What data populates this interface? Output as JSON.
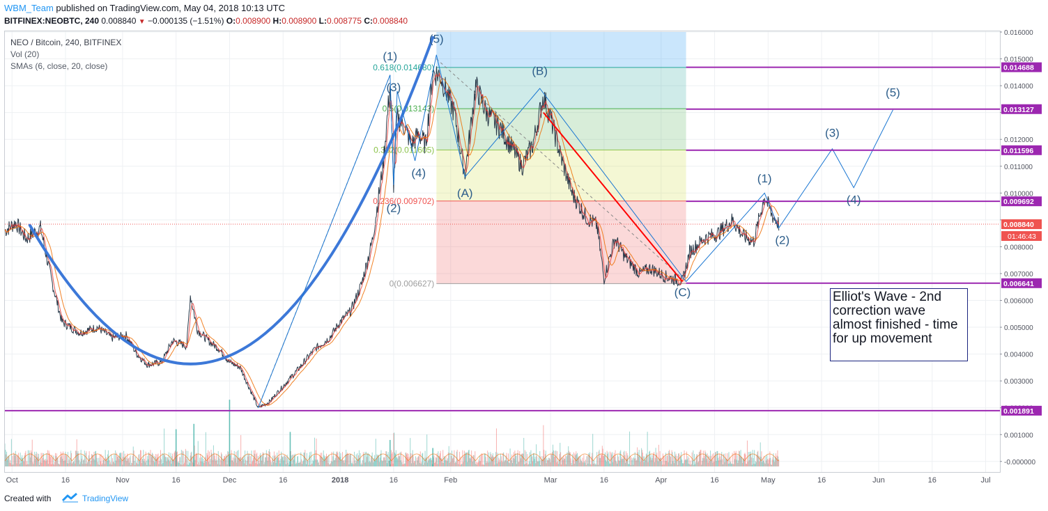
{
  "header": {
    "username": "WBM_Team",
    "published_text": "published on TradingView.com, May 04, 2018 10:13 UTC",
    "symbol_line": "BITFINEX:NEOBTC, 240",
    "last": "0.008840",
    "change": "−0.000135 (−1.51%)",
    "o_label": "O:",
    "o_value": "0.008900",
    "h_label": "H:",
    "h_value": "0.008900",
    "l_label": "L:",
    "l_value": "0.008775",
    "c_label": "C:",
    "c_value": "0.008840"
  },
  "legend": {
    "title": "NEO / Bitcoin, 240, BITFINEX",
    "volume": "Vol (20)",
    "smas": "SMAs (6, close, 20, close)"
  },
  "footer": {
    "created_with": "Created with",
    "brand": "TradingView"
  },
  "annotation": {
    "text": "Elliot's Wave - 2nd correction wave almost finished - time for up movement"
  },
  "colors": {
    "price_line": "#2a3a4a",
    "sma_fast": "#e53935",
    "sma_slow": "#ef6c00",
    "up": "#26a69a",
    "down": "#ef5350",
    "level": "#9c27b0",
    "wave": "#1976d2",
    "curve": "#3c78d8",
    "trend_red": "#ff0000",
    "badge_red": "#ef5350"
  },
  "chart_data": {
    "type": "line",
    "symbol": "NEO / Bitcoin",
    "y_axis": {
      "scale": "linear",
      "range": [
        -0.0005,
        0.016
      ],
      "ticks": [
        -0.0,
        0.001,
        0.002,
        0.003,
        0.004,
        0.005,
        0.006,
        0.007,
        0.008,
        0.009,
        0.01,
        0.011,
        0.012,
        0.013,
        0.014,
        0.015,
        0.016
      ],
      "tick_labels": [
        "-0.000000",
        "0.001000",
        "0.002000",
        "0.003000",
        "0.004000",
        "0.005000",
        "0.006000",
        "0.007000",
        "0.008000",
        "",
        "0.010000",
        "0.011000",
        "0.012000",
        "",
        "0.014000",
        "0.015000",
        "0.016000"
      ]
    },
    "x_axis": {
      "range": [
        "2017-09-29",
        "2018-07-05"
      ],
      "ticks": [
        {
          "date": "2017-10-01",
          "label": "Oct",
          "bold": false
        },
        {
          "date": "2017-10-16",
          "label": "16",
          "bold": false
        },
        {
          "date": "2017-11-01",
          "label": "Nov",
          "bold": false
        },
        {
          "date": "2017-11-16",
          "label": "16",
          "bold": false
        },
        {
          "date": "2017-12-01",
          "label": "Dec",
          "bold": false
        },
        {
          "date": "2017-12-16",
          "label": "16",
          "bold": false
        },
        {
          "date": "2018-01-01",
          "label": "2018",
          "bold": true
        },
        {
          "date": "2018-01-16",
          "label": "16",
          "bold": false
        },
        {
          "date": "2018-02-01",
          "label": "Feb",
          "bold": false
        },
        {
          "date": "2018-03-01",
          "label": "Mar",
          "bold": false
        },
        {
          "date": "2018-03-16",
          "label": "16",
          "bold": false
        },
        {
          "date": "2018-04-01",
          "label": "Apr",
          "bold": false
        },
        {
          "date": "2018-04-16",
          "label": "16",
          "bold": false
        },
        {
          "date": "2018-05-01",
          "label": "May",
          "bold": false
        },
        {
          "date": "2018-05-16",
          "label": "16",
          "bold": false
        },
        {
          "date": "2018-06-01",
          "label": "Jun",
          "bold": false
        },
        {
          "date": "2018-06-16",
          "label": "16",
          "bold": false
        },
        {
          "date": "2018-07-01",
          "label": "Jul",
          "bold": false
        }
      ]
    },
    "price_path": [
      [
        "2017-09-29",
        0.0086
      ],
      [
        "2017-10-02",
        0.0089
      ],
      [
        "2017-10-05",
        0.0083
      ],
      [
        "2017-10-09",
        0.0087
      ],
      [
        "2017-10-12",
        0.0068
      ],
      [
        "2017-10-15",
        0.0052
      ],
      [
        "2017-10-20",
        0.0048
      ],
      [
        "2017-10-25",
        0.005
      ],
      [
        "2017-10-29",
        0.0046
      ],
      [
        "2017-11-02",
        0.0047
      ],
      [
        "2017-11-05",
        0.004
      ],
      [
        "2017-11-08",
        0.0036
      ],
      [
        "2017-11-12",
        0.0037
      ],
      [
        "2017-11-15",
        0.0045
      ],
      [
        "2017-11-19",
        0.0043
      ],
      [
        "2017-11-20",
        0.0062
      ],
      [
        "2017-11-22",
        0.0049
      ],
      [
        "2017-11-25",
        0.0045
      ],
      [
        "2017-11-28",
        0.0042
      ],
      [
        "2017-12-01",
        0.0037
      ],
      [
        "2017-12-04",
        0.0035
      ],
      [
        "2017-12-07",
        0.0026
      ],
      [
        "2017-12-09",
        0.002
      ],
      [
        "2017-12-12",
        0.0022
      ],
      [
        "2017-12-16",
        0.0028
      ],
      [
        "2017-12-20",
        0.0034
      ],
      [
        "2017-12-25",
        0.0042
      ],
      [
        "2017-12-29",
        0.0046
      ],
      [
        "2018-01-01",
        0.0052
      ],
      [
        "2018-01-04",
        0.0056
      ],
      [
        "2018-01-07",
        0.0066
      ],
      [
        "2018-01-10",
        0.0082
      ],
      [
        "2018-01-13",
        0.011
      ],
      [
        "2018-01-15",
        0.014
      ],
      [
        "2018-01-16",
        0.0103
      ],
      [
        "2018-01-17",
        0.0128
      ],
      [
        "2018-01-19",
        0.0125
      ],
      [
        "2018-01-21",
        0.0118
      ],
      [
        "2018-01-23",
        0.0122
      ],
      [
        "2018-01-25",
        0.0118
      ],
      [
        "2018-01-27",
        0.0145
      ],
      [
        "2018-01-29",
        0.0144
      ],
      [
        "2018-02-02",
        0.013
      ],
      [
        "2018-02-05",
        0.0107
      ],
      [
        "2018-02-08",
        0.014
      ],
      [
        "2018-02-11",
        0.013
      ],
      [
        "2018-02-15",
        0.0124
      ],
      [
        "2018-02-19",
        0.0115
      ],
      [
        "2018-02-21",
        0.011
      ],
      [
        "2018-02-24",
        0.0118
      ],
      [
        "2018-02-27",
        0.0136
      ],
      [
        "2018-03-01",
        0.0128
      ],
      [
        "2018-03-04",
        0.0113
      ],
      [
        "2018-03-07",
        0.01
      ],
      [
        "2018-03-11",
        0.0091
      ],
      [
        "2018-03-14",
        0.0088
      ],
      [
        "2018-03-16",
        0.0068
      ],
      [
        "2018-03-19",
        0.0083
      ],
      [
        "2018-03-22",
        0.0076
      ],
      [
        "2018-03-26",
        0.007
      ],
      [
        "2018-03-29",
        0.0072
      ],
      [
        "2018-04-02",
        0.0069
      ],
      [
        "2018-04-07",
        0.0067
      ],
      [
        "2018-04-09",
        0.0078
      ],
      [
        "2018-04-13",
        0.0083
      ],
      [
        "2018-04-17",
        0.0085
      ],
      [
        "2018-04-21",
        0.009
      ],
      [
        "2018-04-24",
        0.0084
      ],
      [
        "2018-04-27",
        0.0082
      ],
      [
        "2018-04-30",
        0.0099
      ],
      [
        "2018-05-02",
        0.0092
      ],
      [
        "2018-05-04",
        0.00884
      ]
    ],
    "sma": [
      {
        "name": "SMA 6",
        "color": "#e53935"
      },
      {
        "name": "SMA 20",
        "color": "#ef6c00"
      }
    ],
    "fib_retracement": {
      "start": "2018-01-28",
      "end": "2018-04-08",
      "levels": [
        {
          "ratio_label": "0.618(0.014680)",
          "price": 0.01468,
          "color": "#26a69a"
        },
        {
          "ratio_label": "0.5(0.013143)",
          "price": 0.013143,
          "color": "#4caf50"
        },
        {
          "ratio_label": "0.382(0.011605)",
          "price": 0.011605,
          "color": "#8bc34a"
        },
        {
          "ratio_label": "0.236(0.009702)",
          "price": 0.009702,
          "color": "#ef5350"
        },
        {
          "ratio_label": "0(0.006627)",
          "price": 0.006627,
          "color": "#9e9e9e"
        }
      ]
    },
    "horizontal_levels": [
      {
        "price": 0.014688,
        "label": "0.014688",
        "from": "2018-04-08"
      },
      {
        "price": 0.013127,
        "label": "0.013127",
        "from": "2018-04-08"
      },
      {
        "price": 0.011596,
        "label": "0.011596",
        "from": "2018-04-08"
      },
      {
        "price": 0.009692,
        "label": "0.009692",
        "from": "2018-04-08"
      },
      {
        "price": 0.006641,
        "label": "0.006641",
        "from": "2018-04-08"
      },
      {
        "price": 0.001891,
        "label": "0.001891",
        "from": "2017-09-29"
      }
    ],
    "current_price": {
      "price": 0.00884,
      "label": "0.008840",
      "countdown": "01:46:43"
    },
    "waves": {
      "impulse": [
        [
          "2017-12-09",
          0.00199
        ],
        [
          "2018-01-15",
          0.0144
        ],
        [
          "2018-01-16",
          0.0103
        ],
        [
          "2018-01-17",
          0.0138
        ],
        [
          "2018-01-22",
          0.0112
        ],
        [
          "2018-01-28",
          0.01515
        ]
      ],
      "abc": [
        [
          "2018-01-28",
          0.01515
        ],
        [
          "2018-02-05",
          0.0106
        ],
        [
          "2018-02-26",
          0.0139
        ],
        [
          "2018-04-08",
          0.0067
        ]
      ],
      "projection": [
        [
          "2018-04-08",
          0.0067
        ],
        [
          "2018-04-30",
          0.01
        ],
        [
          "2018-05-04",
          0.0087
        ],
        [
          "2018-05-19",
          0.01165
        ],
        [
          "2018-05-25",
          0.0102
        ],
        [
          "2018-06-05",
          0.0131
        ]
      ],
      "labels": [
        {
          "text": "(1)",
          "date": "2018-01-15",
          "price": 0.01495
        },
        {
          "text": "(2)",
          "date": "2018-01-16",
          "price": 0.0093
        },
        {
          "text": "(3)",
          "date": "2018-01-16",
          "price": 0.0138
        },
        {
          "text": "(4)",
          "date": "2018-01-23",
          "price": 0.0106
        },
        {
          "text": "(5)",
          "date": "2018-01-28",
          "price": 0.0156
        },
        {
          "text": "(A)",
          "date": "2018-02-05",
          "price": 0.00985
        },
        {
          "text": "(B)",
          "date": "2018-02-26",
          "price": 0.0144
        },
        {
          "text": "(C)",
          "date": "2018-04-07",
          "price": 0.00615
        },
        {
          "text": "(1)",
          "date": "2018-04-30",
          "price": 0.0104
        },
        {
          "text": "(2)",
          "date": "2018-05-05",
          "price": 0.0081
        },
        {
          "text": "(3)",
          "date": "2018-05-19",
          "price": 0.0121
        },
        {
          "text": "(4)",
          "date": "2018-05-25",
          "price": 0.0096
        },
        {
          "text": "(5)",
          "date": "2018-06-05",
          "price": 0.0136
        }
      ]
    },
    "rounding_bottom_curve": [
      [
        "2017-10-06",
        0.0088
      ],
      [
        "2017-12-02",
        0.004
      ],
      [
        "2018-01-27",
        0.0158
      ]
    ],
    "trend_line": [
      [
        "2018-02-27",
        0.013
      ],
      [
        "2018-04-07",
        0.0067
      ]
    ],
    "dashed_lines": [
      [
        [
          "2017-12-09",
          0.002
        ],
        [
          "2018-01-15",
          0.0144
        ]
      ],
      [
        [
          "2018-01-28",
          0.015
        ],
        [
          "2018-04-08",
          0.0067
        ]
      ]
    ],
    "volume": {
      "spikes": [
        {
          "date": "2017-11-16",
          "value": 0.0012
        },
        {
          "date": "2017-11-21",
          "value": 0.0014
        },
        {
          "date": "2017-12-01",
          "value": 0.0023
        },
        {
          "date": "2017-12-18",
          "value": 0.0011
        },
        {
          "date": "2018-01-15",
          "value": 0.0008
        },
        {
          "date": "2018-01-27",
          "value": 0.0005
        }
      ]
    }
  }
}
